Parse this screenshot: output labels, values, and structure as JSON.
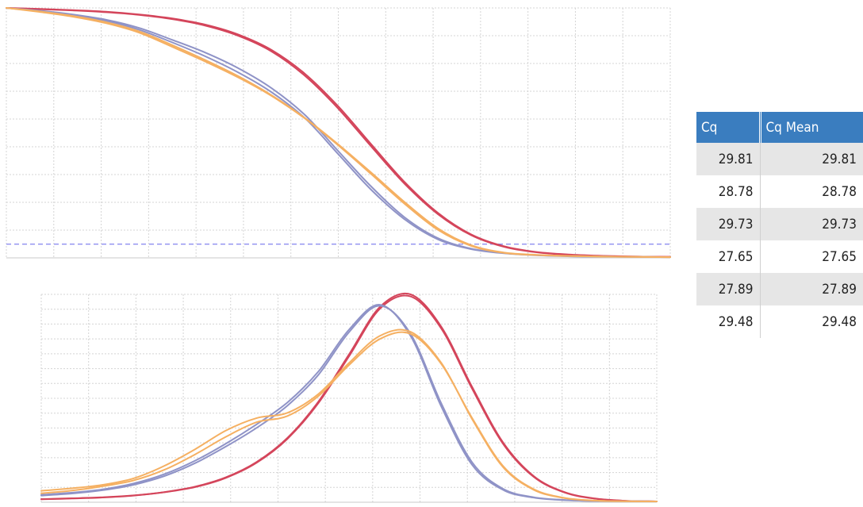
{
  "chart_data": [
    {
      "type": "line",
      "x": [
        0,
        2,
        4,
        6,
        8,
        10,
        12,
        14,
        16,
        18,
        20,
        22,
        24,
        26,
        28,
        30,
        32,
        34,
        36,
        38,
        40
      ],
      "xlim": [
        0,
        40
      ],
      "ylim": [
        0,
        100
      ],
      "grid": true,
      "threshold": 5.5,
      "series": [
        {
          "color": "#d4455b",
          "values": [
            100,
            99.6,
            99.1,
            98.5,
            97.4,
            95.8,
            93.3,
            89.3,
            83.1,
            73.6,
            60.6,
            45.3,
            30.3,
            18.0,
            9.4,
            4.6,
            2.3,
            1.3,
            0.8,
            0.5,
            0.4
          ]
        },
        {
          "color": "#d4455b",
          "values": [
            100,
            99.5,
            99.0,
            98.3,
            97.2,
            95.5,
            92.9,
            88.8,
            82.5,
            72.8,
            59.7,
            44.4,
            29.6,
            17.5,
            9.1,
            4.4,
            2.2,
            1.2,
            0.7,
            0.5,
            0.4
          ]
        },
        {
          "color": "#8f93c7",
          "values": [
            100,
            98.8,
            97.2,
            94.9,
            91.3,
            86.2,
            80.6,
            74.1,
            66.2,
            55.8,
            41.5,
            27.1,
            15.4,
            7.4,
            3.5,
            1.8,
            1.0,
            0.6,
            0.5,
            0.4,
            0.3
          ]
        },
        {
          "color": "#8f93c7",
          "values": [
            100,
            98.9,
            97.4,
            95.3,
            92.0,
            87.2,
            82.1,
            75.8,
            67.8,
            57.1,
            42.7,
            28.4,
            16.2,
            7.9,
            3.7,
            1.9,
            1.1,
            0.7,
            0.5,
            0.4,
            0.3
          ]
        },
        {
          "color": "#f5b062",
          "values": [
            100,
            98.4,
            96.5,
            93.9,
            90.1,
            84.4,
            78.5,
            72.1,
            64.7,
            55.7,
            45.0,
            33.4,
            21.6,
            11.2,
            4.8,
            2.0,
            1.1,
            0.7,
            0.5,
            0.4,
            0.3
          ]
        },
        {
          "color": "#f5b062",
          "values": [
            100,
            98.6,
            96.8,
            94.3,
            90.6,
            85.1,
            79.1,
            72.6,
            65.0,
            55.9,
            45.4,
            34.0,
            22.3,
            11.8,
            5.1,
            2.1,
            1.2,
            0.8,
            0.5,
            0.4,
            0.3
          ]
        }
      ]
    },
    {
      "type": "line",
      "x": [
        0,
        2,
        4,
        6,
        8,
        10,
        12,
        14,
        16,
        18,
        20,
        22,
        24,
        26,
        28,
        30,
        32,
        34,
        36,
        38,
        40
      ],
      "xlim": [
        0,
        40
      ],
      "ylim": [
        0,
        100
      ],
      "grid": true,
      "series": [
        {
          "color": "#d4455b",
          "values": [
            1.5,
            1.9,
            2.4,
            3.3,
            4.9,
            7.5,
            12.0,
            19.4,
            31.0,
            48.3,
            71.1,
            93.9,
            100.0,
            84.4,
            55.5,
            28.9,
            12.6,
            4.9,
            1.8,
            0.7,
            0.4
          ]
        },
        {
          "color": "#d4455b",
          "values": [
            1.4,
            1.8,
            2.3,
            3.2,
            4.8,
            7.3,
            11.7,
            19.0,
            30.5,
            47.6,
            70.2,
            93.0,
            99.0,
            83.5,
            54.6,
            28.2,
            12.2,
            4.7,
            1.7,
            0.7,
            0.4
          ]
        },
        {
          "color": "#8f93c7",
          "values": [
            3.6,
            4.6,
            6.2,
            9.0,
            13.5,
            20.0,
            28.2,
            37.5,
            48.0,
            62.8,
            83.0,
            95.0,
            80.0,
            46.0,
            18.0,
            6.0,
            2.2,
            1.0,
            0.6,
            0.5,
            0.4
          ]
        },
        {
          "color": "#8f93c7",
          "values": [
            3.2,
            4.2,
            5.8,
            8.4,
            12.6,
            18.8,
            26.8,
            35.8,
            46.5,
            61.2,
            81.8,
            94.5,
            81.0,
            47.5,
            19.2,
            6.5,
            2.4,
            1.1,
            0.6,
            0.5,
            0.4
          ]
        },
        {
          "color": "#f5b062",
          "values": [
            5.5,
            6.7,
            8.4,
            11.5,
            17.5,
            25.5,
            34.5,
            40.5,
            43.0,
            52.0,
            67.0,
            80.0,
            82.0,
            67.0,
            40.0,
            17.0,
            6.0,
            2.0,
            0.8,
            0.5,
            0.4
          ]
        },
        {
          "color": "#f5b062",
          "values": [
            4.3,
            5.6,
            7.7,
            10.5,
            15.6,
            23.0,
            31.5,
            38.5,
            41.5,
            51.0,
            66.0,
            78.5,
            81.0,
            66.5,
            40.5,
            17.5,
            6.3,
            2.1,
            0.8,
            0.5,
            0.4
          ]
        }
      ]
    }
  ],
  "table": {
    "headers": [
      "Cq",
      "Cq Mean"
    ],
    "rows": [
      [
        "29.81",
        "29.81"
      ],
      [
        "28.78",
        "28.78"
      ],
      [
        "29.73",
        "29.73"
      ],
      [
        "27.65",
        "27.65"
      ],
      [
        "27.89",
        "27.89"
      ],
      [
        "29.48",
        "29.48"
      ]
    ]
  }
}
